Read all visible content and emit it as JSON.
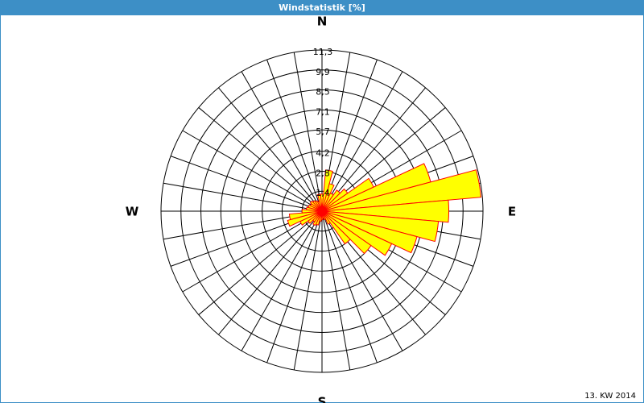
{
  "chart_data": {
    "type": "windrose",
    "title": "Windstatistik [%]",
    "footer": "13. KW 2014",
    "x": [
      0,
      10,
      20,
      30,
      40,
      50,
      60,
      70,
      80,
      90,
      100,
      110,
      120,
      130,
      140,
      150,
      160,
      170,
      180,
      190,
      200,
      210,
      220,
      230,
      240,
      250,
      260,
      270,
      280,
      290,
      300,
      310,
      320,
      330,
      340,
      350
    ],
    "values": [
      1.2,
      2.9,
      2.0,
      1.4,
      1.8,
      2.2,
      4.0,
      7.9,
      11.2,
      8.9,
      8.2,
      6.9,
      5.4,
      4.2,
      2.8,
      1.0,
      0.6,
      0.5,
      0.6,
      0.7,
      1.0,
      1.1,
      0.9,
      1.2,
      1.7,
      2.5,
      2.3,
      1.4,
      1.1,
      1.0,
      0.9,
      1.0,
      0.9,
      0.8,
      0.7,
      1.2
    ],
    "color": "#ffff00",
    "edge_color": "#ff0000",
    "xticks": [
      {
        "value": 0,
        "label": "N"
      },
      {
        "value": 90,
        "label": "E"
      },
      {
        "value": 180,
        "label": "S"
      },
      {
        "value": 270,
        "label": "W"
      }
    ],
    "ylim": [
      0,
      11.3
    ],
    "yticks": [
      {
        "value": 1.4,
        "label": "1,4"
      },
      {
        "value": 2.8,
        "label": "2,8"
      },
      {
        "value": 4.2,
        "label": "4,2"
      },
      {
        "value": 5.7,
        "label": "5,7"
      },
      {
        "value": 7.1,
        "label": "7,1"
      },
      {
        "value": 8.5,
        "label": "8,5"
      },
      {
        "value": 9.9,
        "label": "9,9"
      },
      {
        "value": 11.3,
        "label": "11,3"
      }
    ],
    "grid": true
  }
}
